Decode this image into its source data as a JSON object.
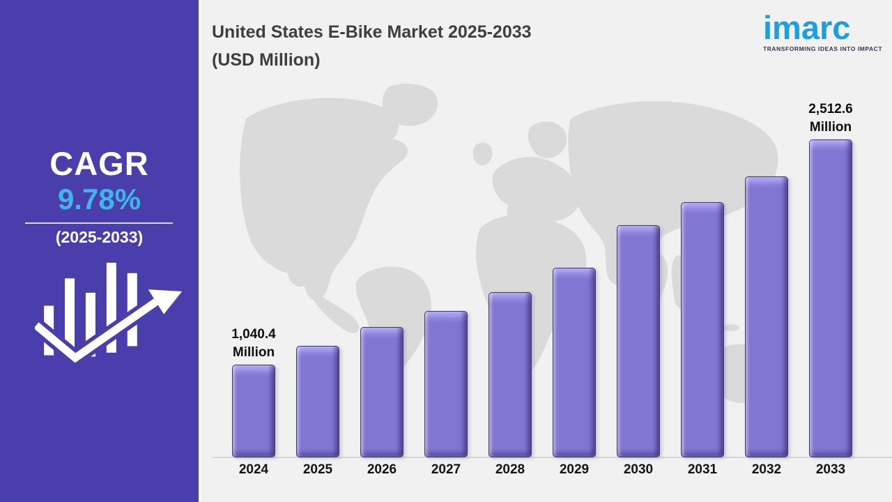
{
  "sidebar": {
    "cagr_label": "CAGR",
    "cagr_value": "9.78%",
    "cagr_period": "(2025-2033)",
    "icon": "growth-bar-chart-arrow-icon",
    "bg_color": "#4a3dac",
    "accent_color": "#3db6ea"
  },
  "header": {
    "title_line1": "United States E-Bike Market 2025-2033",
    "title_line2": "(USD Million)",
    "title_color": "#3e3e40"
  },
  "logo": {
    "text": "imarc",
    "tagline": "TRANSFORMING IDEAS INTO IMPACT",
    "color": "#1b9fe0",
    "tagline_color": "#30364d"
  },
  "chart_data": {
    "type": "bar",
    "title": "United States E-Bike Market 2025-2033 (USD Million)",
    "unit": "USD Million",
    "categories": [
      "2024",
      "2025",
      "2026",
      "2027",
      "2028",
      "2029",
      "2030",
      "2031",
      "2032",
      "2033"
    ],
    "values": [
      1040.4,
      1165,
      1285,
      1390,
      1515,
      1675,
      1950,
      2100,
      2270,
      2512.6
    ],
    "values_note": "Only 2024 and 2033 show printed data labels; intermediate values are estimated from bar heights",
    "data_labels": [
      {
        "index": 0,
        "line1": "1,040.4",
        "line2": "Million"
      },
      {
        "index": 9,
        "line1": "2,512.6",
        "line2": "Million"
      }
    ],
    "bar_color": "#8176d2",
    "bar_bevel_light": "#aaa2ee",
    "bar_bevel_dark": "#554c9e",
    "background_watermark": "world-map",
    "grid": false,
    "legend": false
  }
}
